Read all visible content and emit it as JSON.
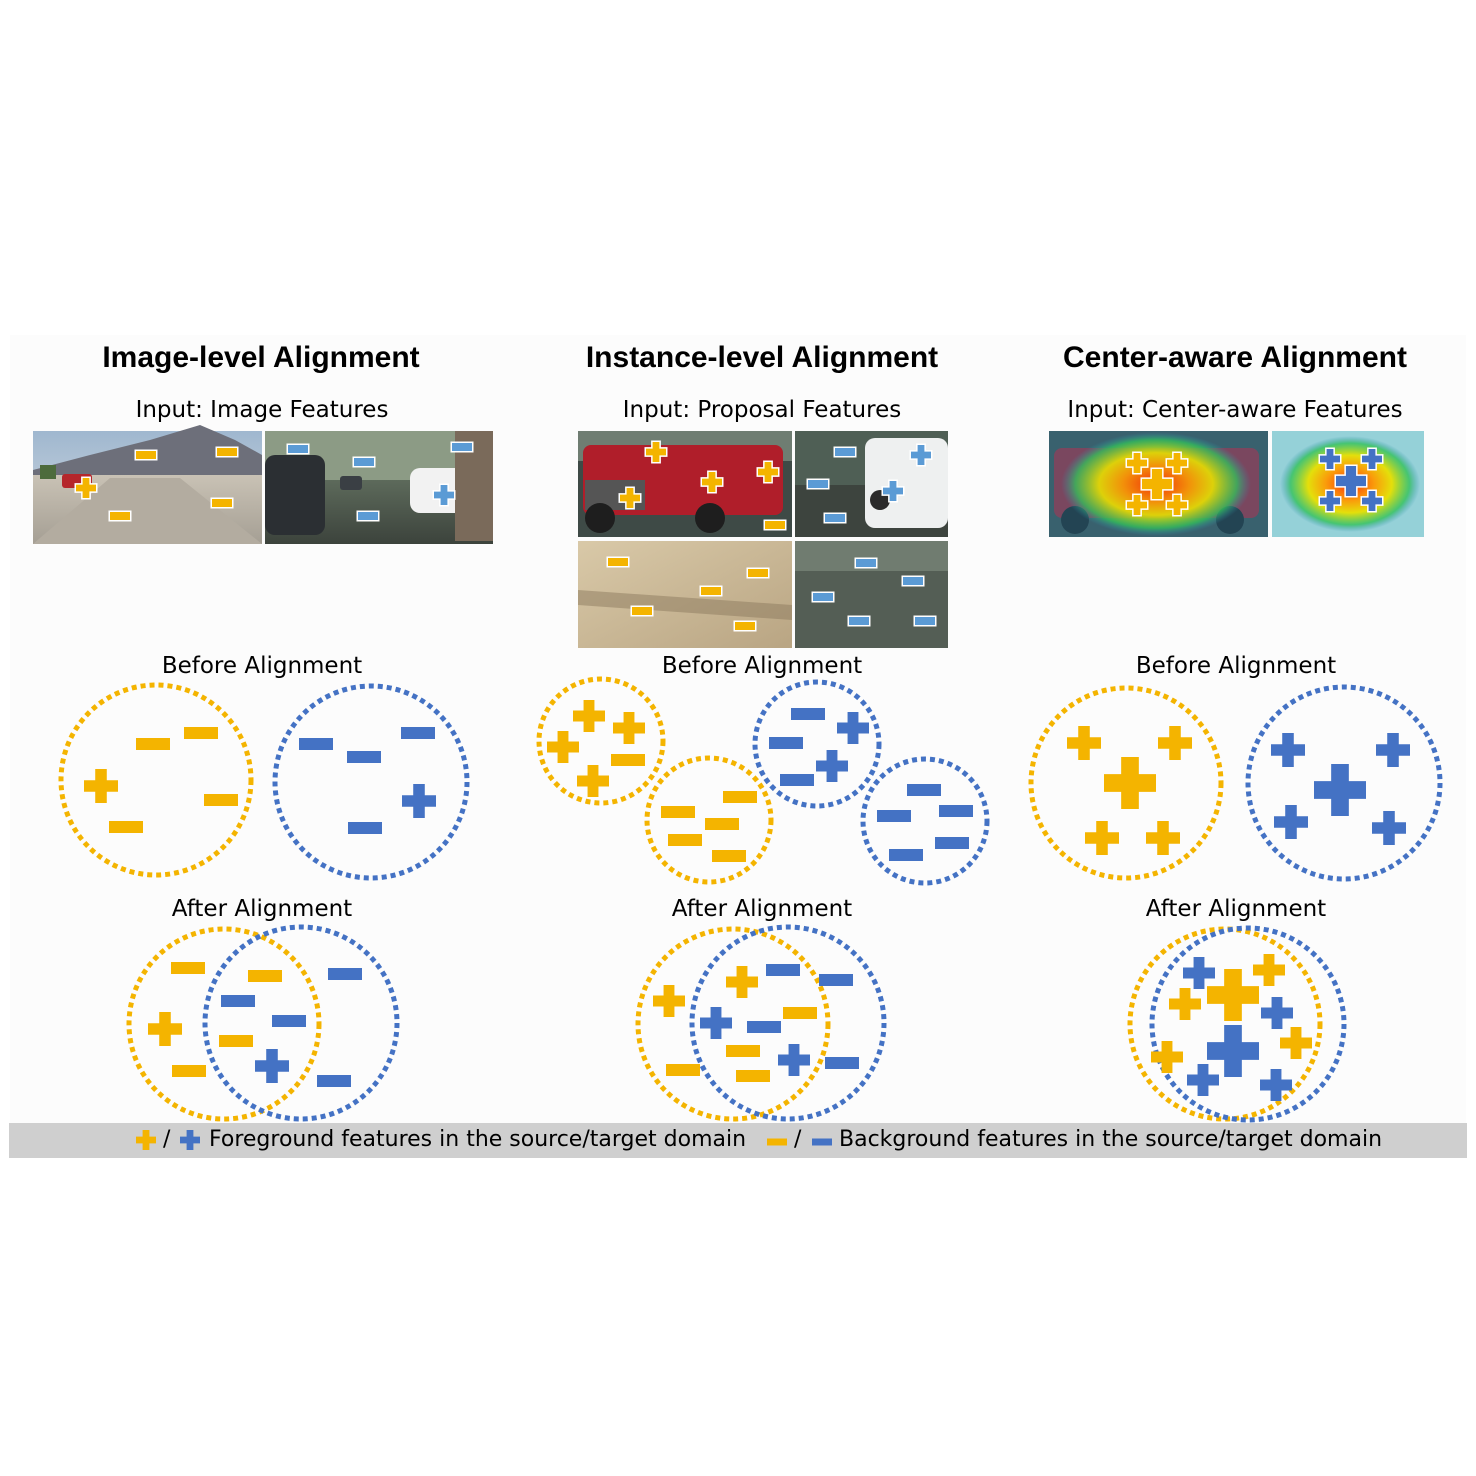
{
  "columns": [
    {
      "title": "Image-level Alignment",
      "input_label": "Input: Image Features",
      "before_label": "Before Alignment",
      "after_label": "After Alignment"
    },
    {
      "title": "Instance-level Alignment",
      "input_label": "Input: Proposal Features",
      "before_label": "Before Alignment",
      "after_label": "After Alignment"
    },
    {
      "title": "Center-aware Alignment",
      "input_label": "Input: Center-aware Features",
      "before_label": "Before Alignment",
      "after_label": "After Alignment"
    }
  ],
  "legend": {
    "slash": "/",
    "foreground_text": "Foreground features in the source/target domain",
    "background_text": "Background features in the source/target domain"
  },
  "colors": {
    "source": "#F4B400",
    "target": "#4472C4",
    "target_light": "#5B9BD5",
    "legend_bar": "#CFCFCF"
  },
  "icons": {
    "foreground": "plus-icon",
    "background": "minus-icon"
  }
}
